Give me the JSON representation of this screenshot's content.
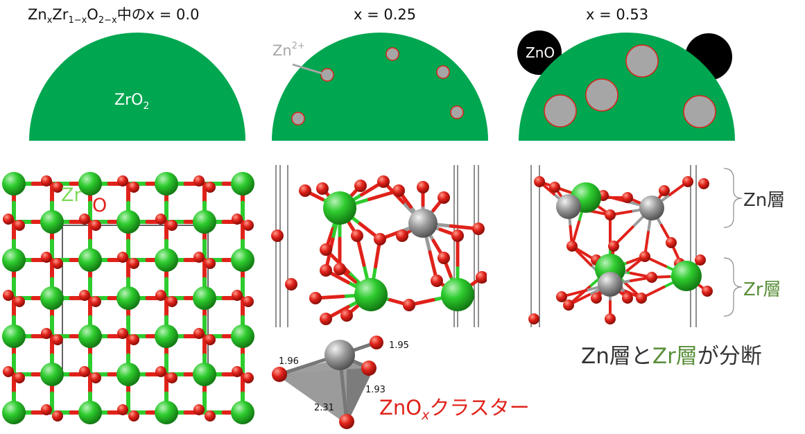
{
  "titles": {
    "col1_main": "Zn",
    "col1_sub_x": "x",
    "col1_zr": "Zr",
    "col1_sub_1x": "1−x",
    "col1_o": "O",
    "col1_sub_2x": "2−x",
    "col1_tail": "中のx = 0.0",
    "col2": "x = 0.25",
    "col3": "x = 0.53"
  },
  "domes": {
    "zro2_main": "ZrO",
    "zro2_sub": "2",
    "zn_ion_main": "Zn",
    "zn_ion_sup": "2+",
    "zno": "ZnO"
  },
  "structure_labels": {
    "zr": "Zr",
    "o": "O"
  },
  "bond_lengths": [
    "1.96",
    "1.95",
    "1.93",
    "2.31"
  ],
  "cluster_label": {
    "main": "ZnO",
    "sub": "x",
    "tail": "クラスター"
  },
  "layers": {
    "zn_layer": "Zn層",
    "zr_layer": "Zr層"
  },
  "conclusion": {
    "part1": "Zn層と",
    "part2": "Zr層",
    "part3": "が分断"
  },
  "colors": {
    "zro2_green": "#00a650",
    "zn_gray": "#a6a6a6",
    "oxygen_red": "#e0221a",
    "zr_atom": "#22bb22",
    "zn_atom": "#8c8c8c",
    "label_green": "#5a8f3a",
    "dark_text": "#333333"
  }
}
